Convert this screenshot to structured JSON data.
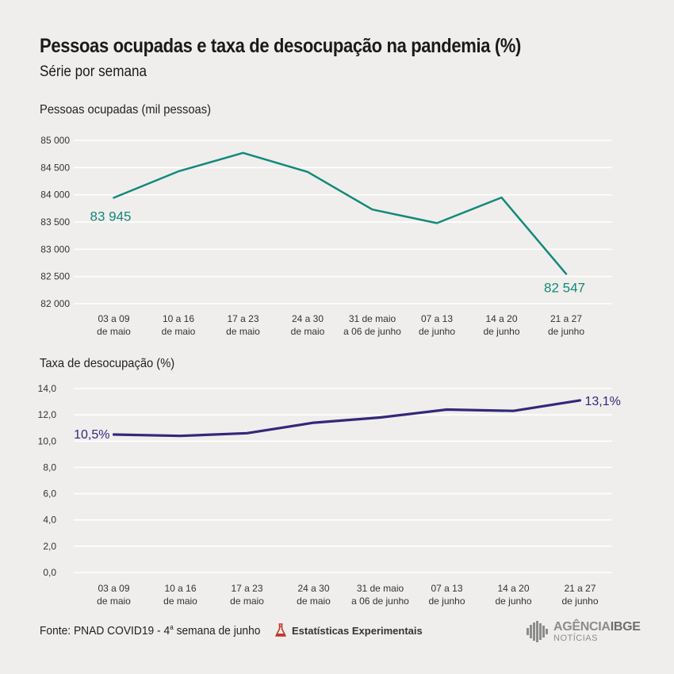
{
  "title": "Pessoas ocupadas e taxa de desocupação na pandemia (%)",
  "subtitle": "Série por semana",
  "chart_data": [
    {
      "type": "line",
      "title": "Pessoas ocupadas (mil pessoas)",
      "categories": [
        [
          "03 a 09",
          "de maio"
        ],
        [
          "10 a 16",
          "de maio"
        ],
        [
          "17 a 23",
          "de maio"
        ],
        [
          "24 a 30",
          "de maio"
        ],
        [
          "31 de maio",
          "a 06 de junho"
        ],
        [
          "07 a 13",
          "de junho"
        ],
        [
          "14 a 20",
          "de junho"
        ],
        [
          "21 a 27",
          "de junho"
        ]
      ],
      "series": [
        {
          "values": [
            83945,
            84430,
            84770,
            84420,
            83730,
            83480,
            83950,
            82547
          ],
          "color": "#13897a"
        }
      ],
      "ylim": [
        82000,
        85000
      ],
      "yticks": [
        "82 000",
        "82 500",
        "83 000",
        "83 500",
        "84 000",
        "84 500",
        "85 000"
      ],
      "annotations": [
        "83 945",
        "82 547"
      ],
      "grid": true
    },
    {
      "type": "line",
      "title": "Taxa de desocupação (%)",
      "categories": [
        [
          "03 a 09",
          "de maio"
        ],
        [
          "10 a 16",
          "de maio"
        ],
        [
          "17 a 23",
          "de maio"
        ],
        [
          "24 a 30",
          "de maio"
        ],
        [
          "31 de maio",
          "a 06 de junho"
        ],
        [
          "07 a 13",
          "de junho"
        ],
        [
          "14 a 20",
          "de junho"
        ],
        [
          "21 a 27",
          "de junho"
        ]
      ],
      "series": [
        {
          "values": [
            10.5,
            10.4,
            10.6,
            11.4,
            11.8,
            12.4,
            12.3,
            13.1
          ],
          "color": "#33287a"
        }
      ],
      "ylim": [
        0,
        14
      ],
      "yticks": [
        "0,0",
        "2,0",
        "4,0",
        "6,0",
        "8,0",
        "10,0",
        "12,0",
        "14,0"
      ],
      "annotations": [
        "10,5%",
        "13,1%"
      ],
      "grid": true
    }
  ],
  "footer": {
    "source_prefix": "Fonte: PNAD COVID19 - 4",
    "source_sup": "a",
    "source_suffix": " semana de junho",
    "experimental_label": "Estatísticas Experimentais",
    "logo_agencia": "AGÊNCIA",
    "logo_ibge": "IBGE",
    "logo_noticias": "NOTÍCIAS"
  }
}
